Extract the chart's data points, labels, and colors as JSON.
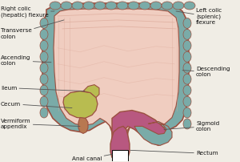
{
  "bg_color": "#f0ede5",
  "colors": {
    "colon_teal": "#7aaba8",
    "colon_outline": "#9b5040",
    "inner_fill": "#f0cdc0",
    "inner_fold": "#dba898",
    "cecum_fill": "#b8bc50",
    "sigmoid_fill": "#b85880",
    "appendix_fill": "#b87850",
    "text_color": "#111111",
    "line_color": "#555555"
  },
  "labels": {
    "right_colic": "Right colic\n(hepatic) flexure",
    "left_colic": "Left colic\n(splenic)\nflexure",
    "transverse": "Transverse\ncolon",
    "ascending": "Ascending\ncolon",
    "ileum": "Ileum",
    "cecum": "Cecum",
    "vermiform": "Vermiform\nappendix",
    "anal_canal": "Anal canal",
    "descending": "Descending\ncolon",
    "sigmoid": "Sigmoid\ncolon",
    "rectum": "Rectum"
  }
}
